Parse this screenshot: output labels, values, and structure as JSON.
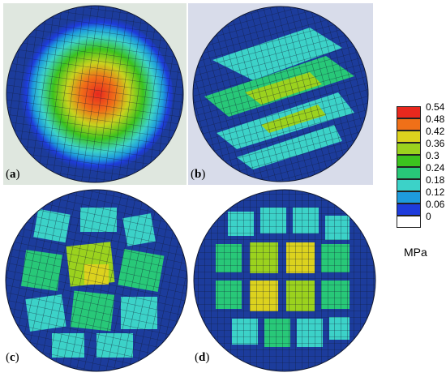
{
  "panels": [
    {
      "key": "a",
      "label_open": "(",
      "label_letter": "a",
      "label_close": ")"
    },
    {
      "key": "b",
      "label_open": "(",
      "label_letter": "b",
      "label_close": ")"
    },
    {
      "key": "c",
      "label_open": "(",
      "label_letter": "c",
      "label_close": ")"
    },
    {
      "key": "d",
      "label_open": "(",
      "label_letter": "d",
      "label_close": ")"
    }
  ],
  "legend": {
    "ticks": [
      "0.54",
      "0.48",
      "0.42",
      "0.36",
      "0.3",
      "0.24",
      "0.18",
      "0.12",
      "0.06",
      "0"
    ],
    "colors": [
      "#e8281e",
      "#f07018",
      "#dcd21e",
      "#9bd21e",
      "#3cc31e",
      "#28c878",
      "#3cd2c8",
      "#1e9bdc",
      "#1e3cdc",
      "#ffffff"
    ],
    "unit": "MPa"
  },
  "colors": {
    "disc_outer": "#1c3c9c",
    "panel_bg_a": "#dfe7df",
    "panel_bg_b": "#d8dcea",
    "mesh": "#101830"
  }
}
